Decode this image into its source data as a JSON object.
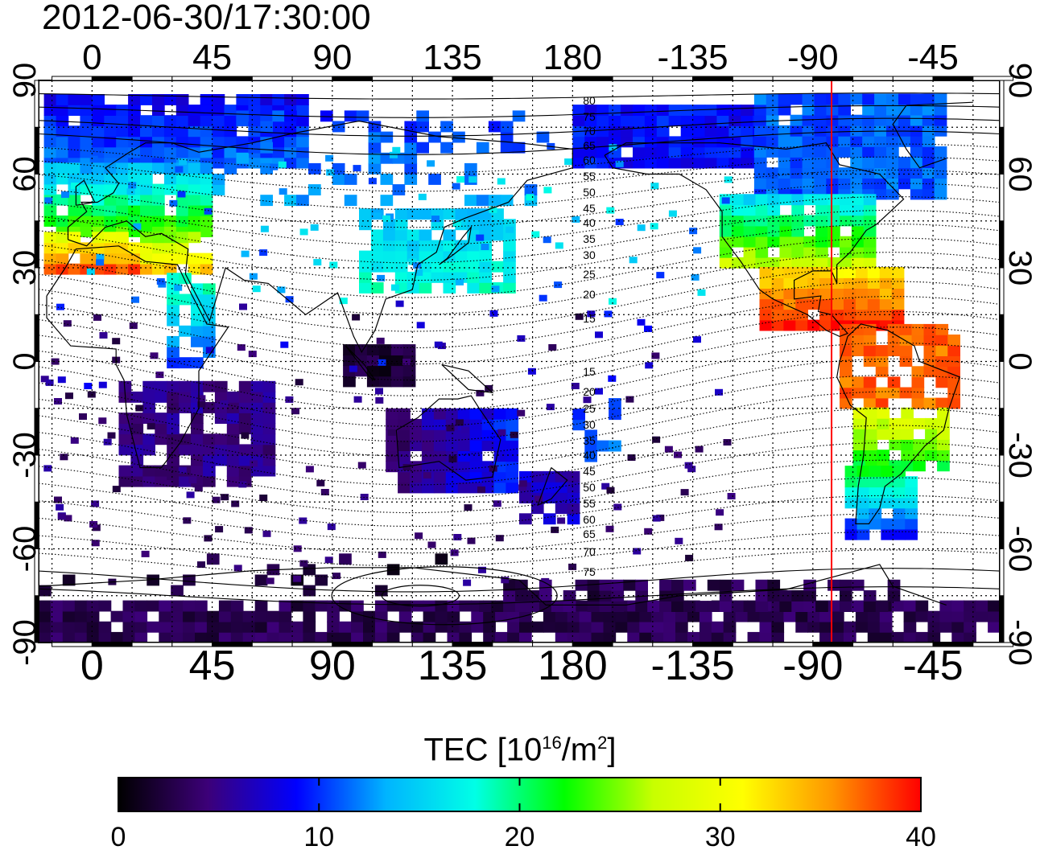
{
  "title": "2012-06-30/17:30:00",
  "map": {
    "projection": "equirectangular",
    "lon_ticks_top": [
      "0",
      "45",
      "90",
      "135",
      "180",
      "-135",
      "-90",
      "-45"
    ],
    "lon_ticks_bottom": [
      "0",
      "45",
      "90",
      "135",
      "180",
      "-135",
      "-90",
      "-45"
    ],
    "lat_ticks_left": [
      "90",
      "60",
      "30",
      "0",
      "-30",
      "-60",
      "-90"
    ],
    "lat_ticks_right": [
      "90",
      "60",
      "30",
      "0",
      "-30",
      "-60",
      "-90"
    ],
    "lon_tick_values": [
      0,
      45,
      90,
      135,
      180,
      225,
      270,
      315
    ],
    "lat_tick_values": [
      90,
      60,
      30,
      0,
      -30,
      -60,
      -90
    ],
    "lon_range": [
      -20,
      340
    ],
    "lat_range": [
      -90,
      90
    ],
    "grid": true,
    "terminator_longitude": -83,
    "terminator_color": "#ff0000",
    "contour_labels_upper": [
      "80",
      "75",
      "70",
      "65",
      "60",
      "55",
      "50",
      "45",
      "40",
      "35",
      "30",
      "25",
      "20",
      "15"
    ],
    "contour_labels_lower": [
      "15",
      "20",
      "25",
      "30",
      "35",
      "40",
      "45",
      "50",
      "55",
      "60",
      "65",
      "70",
      "75"
    ]
  },
  "colorbar": {
    "label_main": "TEC  [10",
    "label_exp1": "16",
    "label_mid": "/m",
    "label_exp2": "2",
    "label_end": "]",
    "min": 0,
    "max": 40,
    "tick_labels": [
      "0",
      "10",
      "20",
      "30",
      "40"
    ],
    "colormap": [
      "#000000",
      "#3c0078",
      "#0000ff",
      "#00b4ff",
      "#00ffe6",
      "#00ff00",
      "#c8ff00",
      "#ffff00",
      "#ff9600",
      "#ff0000"
    ]
  }
}
